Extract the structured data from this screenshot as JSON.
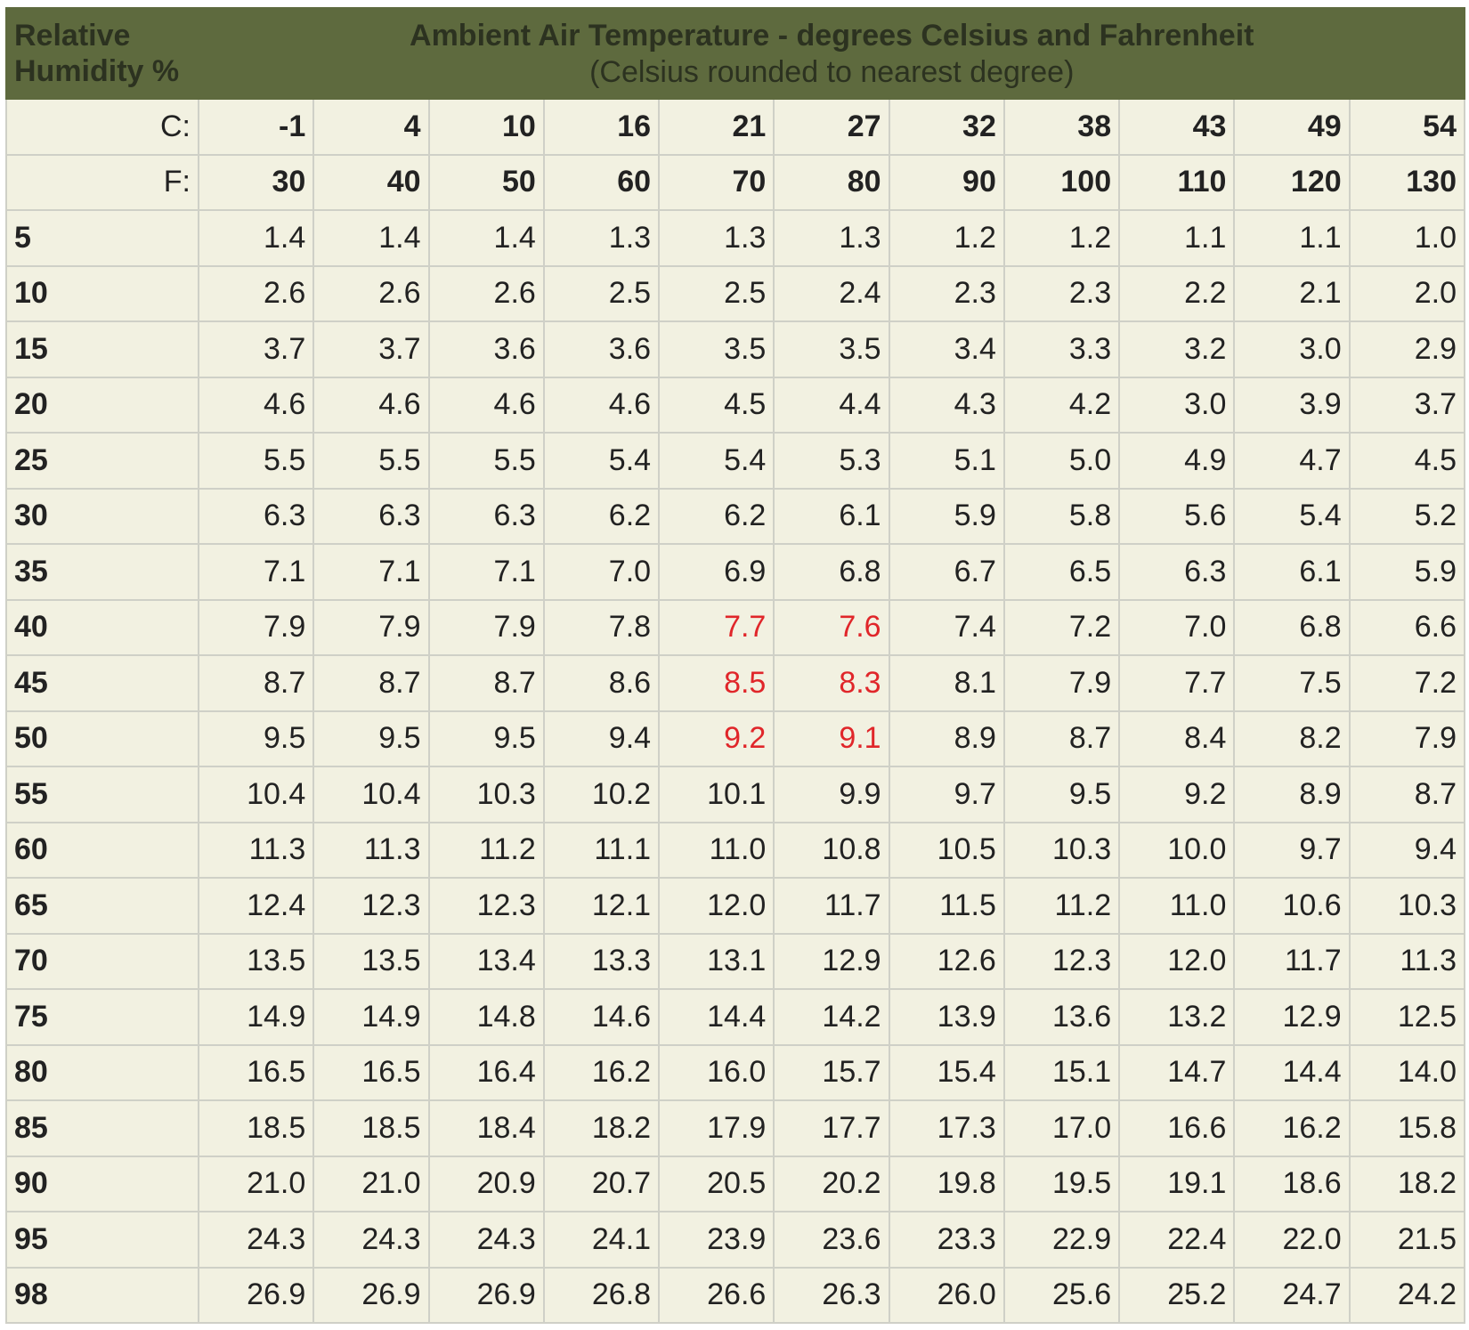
{
  "header": {
    "corner_line1": "Relative",
    "corner_line2": "Humidity %",
    "title": "Ambient Air Temperature - degrees Celsius and Fahrenheit",
    "subtitle": "(Celsius rounded to nearest degree)"
  },
  "celsius": {
    "label": "C:",
    "values": [
      "-1",
      "4",
      "10",
      "16",
      "21",
      "27",
      "32",
      "38",
      "43",
      "49",
      "54"
    ]
  },
  "fahrenheit": {
    "label": "F:",
    "values": [
      "30",
      "40",
      "50",
      "60",
      "70",
      "80",
      "90",
      "100",
      "110",
      "120",
      "130"
    ]
  },
  "highlight_color": "#e0262a",
  "rows": [
    {
      "rh": "5",
      "values": [
        "1.4",
        "1.4",
        "1.4",
        "1.3",
        "1.3",
        "1.3",
        "1.2",
        "1.2",
        "1.1",
        "1.1",
        "1.0"
      ],
      "highlight": []
    },
    {
      "rh": "10",
      "values": [
        "2.6",
        "2.6",
        "2.6",
        "2.5",
        "2.5",
        "2.4",
        "2.3",
        "2.3",
        "2.2",
        "2.1",
        "2.0"
      ],
      "highlight": []
    },
    {
      "rh": "15",
      "values": [
        "3.7",
        "3.7",
        "3.6",
        "3.6",
        "3.5",
        "3.5",
        "3.4",
        "3.3",
        "3.2",
        "3.0",
        "2.9"
      ],
      "highlight": []
    },
    {
      "rh": "20",
      "values": [
        "4.6",
        "4.6",
        "4.6",
        "4.6",
        "4.5",
        "4.4",
        "4.3",
        "4.2",
        "3.0",
        "3.9",
        "3.7"
      ],
      "highlight": []
    },
    {
      "rh": "25",
      "values": [
        "5.5",
        "5.5",
        "5.5",
        "5.4",
        "5.4",
        "5.3",
        "5.1",
        "5.0",
        "4.9",
        "4.7",
        "4.5"
      ],
      "highlight": []
    },
    {
      "rh": "30",
      "values": [
        "6.3",
        "6.3",
        "6.3",
        "6.2",
        "6.2",
        "6.1",
        "5.9",
        "5.8",
        "5.6",
        "5.4",
        "5.2"
      ],
      "highlight": []
    },
    {
      "rh": "35",
      "values": [
        "7.1",
        "7.1",
        "7.1",
        "7.0",
        "6.9",
        "6.8",
        "6.7",
        "6.5",
        "6.3",
        "6.1",
        "5.9"
      ],
      "highlight": []
    },
    {
      "rh": "40",
      "values": [
        "7.9",
        "7.9",
        "7.9",
        "7.8",
        "7.7",
        "7.6",
        "7.4",
        "7.2",
        "7.0",
        "6.8",
        "6.6"
      ],
      "highlight": [
        4,
        5
      ]
    },
    {
      "rh": "45",
      "values": [
        "8.7",
        "8.7",
        "8.7",
        "8.6",
        "8.5",
        "8.3",
        "8.1",
        "7.9",
        "7.7",
        "7.5",
        "7.2"
      ],
      "highlight": [
        4,
        5
      ]
    },
    {
      "rh": "50",
      "values": [
        "9.5",
        "9.5",
        "9.5",
        "9.4",
        "9.2",
        "9.1",
        "8.9",
        "8.7",
        "8.4",
        "8.2",
        "7.9"
      ],
      "highlight": [
        4,
        5
      ]
    },
    {
      "rh": "55",
      "values": [
        "10.4",
        "10.4",
        "10.3",
        "10.2",
        "10.1",
        "9.9",
        "9.7",
        "9.5",
        "9.2",
        "8.9",
        "8.7"
      ],
      "highlight": []
    },
    {
      "rh": "60",
      "values": [
        "11.3",
        "11.3",
        "11.2",
        "11.1",
        "11.0",
        "10.8",
        "10.5",
        "10.3",
        "10.0",
        "9.7",
        "9.4"
      ],
      "highlight": []
    },
    {
      "rh": "65",
      "values": [
        "12.4",
        "12.3",
        "12.3",
        "12.1",
        "12.0",
        "11.7",
        "11.5",
        "11.2",
        "11.0",
        "10.6",
        "10.3"
      ],
      "highlight": []
    },
    {
      "rh": "70",
      "values": [
        "13.5",
        "13.5",
        "13.4",
        "13.3",
        "13.1",
        "12.9",
        "12.6",
        "12.3",
        "12.0",
        "11.7",
        "11.3"
      ],
      "highlight": []
    },
    {
      "rh": "75",
      "values": [
        "14.9",
        "14.9",
        "14.8",
        "14.6",
        "14.4",
        "14.2",
        "13.9",
        "13.6",
        "13.2",
        "12.9",
        "12.5"
      ],
      "highlight": []
    },
    {
      "rh": "80",
      "values": [
        "16.5",
        "16.5",
        "16.4",
        "16.2",
        "16.0",
        "15.7",
        "15.4",
        "15.1",
        "14.7",
        "14.4",
        "14.0"
      ],
      "highlight": []
    },
    {
      "rh": "85",
      "values": [
        "18.5",
        "18.5",
        "18.4",
        "18.2",
        "17.9",
        "17.7",
        "17.3",
        "17.0",
        "16.6",
        "16.2",
        "15.8"
      ],
      "highlight": []
    },
    {
      "rh": "90",
      "values": [
        "21.0",
        "21.0",
        "20.9",
        "20.7",
        "20.5",
        "20.2",
        "19.8",
        "19.5",
        "19.1",
        "18.6",
        "18.2"
      ],
      "highlight": []
    },
    {
      "rh": "95",
      "values": [
        "24.3",
        "24.3",
        "24.3",
        "24.1",
        "23.9",
        "23.6",
        "23.3",
        "22.9",
        "22.4",
        "22.0",
        "21.5"
      ],
      "highlight": []
    },
    {
      "rh": "98",
      "values": [
        "26.9",
        "26.9",
        "26.9",
        "26.8",
        "26.6",
        "26.3",
        "26.0",
        "25.6",
        "25.2",
        "24.7",
        "24.2"
      ],
      "highlight": []
    }
  ]
}
